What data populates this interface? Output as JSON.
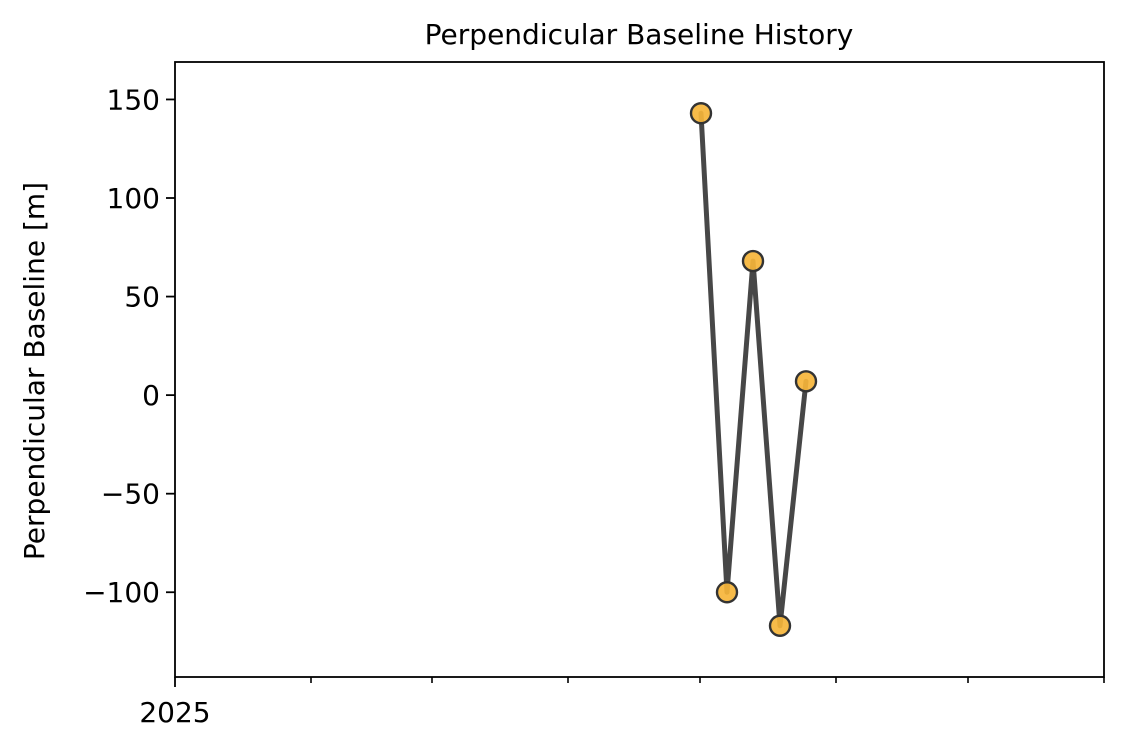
{
  "chart_data": {
    "type": "line",
    "title": "Perpendicular Baseline History",
    "xlabel": "",
    "ylabel": "Perpendicular Baseline [m]",
    "x_tick_labels": [
      "2025"
    ],
    "y_ticks": [
      150,
      100,
      50,
      0,
      -50,
      -100
    ],
    "y_tick_labels": [
      "150",
      "100",
      "50",
      "0",
      "−50",
      "−100"
    ],
    "ylim": [
      -143,
      169
    ],
    "series": [
      {
        "values": [
          143,
          -100,
          68,
          -117,
          7
        ],
        "line_color": "#474747",
        "marker_color": "#f6b53a",
        "marker_edge_color": "#333333"
      }
    ],
    "grid": false,
    "legend": "none"
  }
}
